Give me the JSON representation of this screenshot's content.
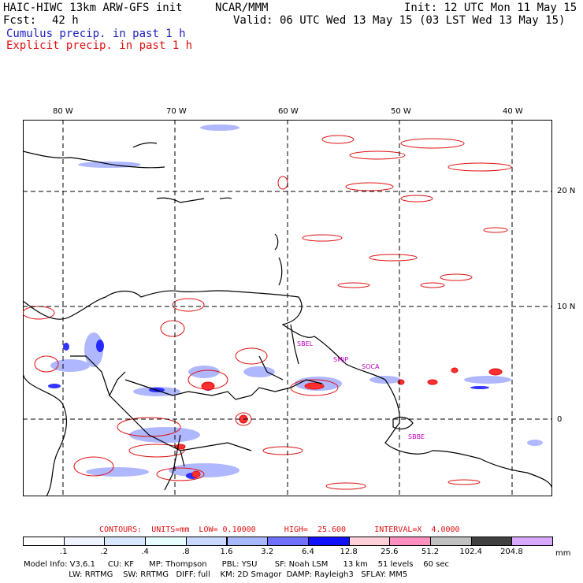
{
  "header": {
    "model_title": "HAIC-HIWC 13km ARW-GFS init",
    "org": "NCAR/MMM",
    "fcst_label": "Fcst:",
    "fcst_value": "42 h",
    "init": "Init: 12 UTC Mon 11 May 15",
    "valid": "Valid: 06 UTC Wed 13 May 15 (03 LST Wed 13 May 15)",
    "cumulus": "Cumulus precip. in past 1 h",
    "explicit": "Explicit precip. in past 1 h"
  },
  "map": {
    "lon_labels": [
      "80 W",
      "70 W",
      "60 W",
      "50 W",
      "40 W"
    ],
    "lat_labels": [
      "20 N",
      "10 N",
      "0"
    ],
    "stations": [
      "SBEL",
      "SMJP",
      "SOCA",
      "SBBE"
    ]
  },
  "colors": {
    "cumulus": "#2020c0",
    "explicit": "#e01010",
    "coast": "#000000"
  },
  "contours": {
    "line": "CONTOURS:  UNITS=mm  LOW= 0.10000      HIGH=  25.600      INTERVAL=X  4.0000"
  },
  "colorbar": {
    "unit": "mm",
    "labels": [
      ".1",
      ".2",
      ".4",
      ".8",
      "1.6",
      "3.2",
      "6.4",
      "12.8",
      "25.6",
      "51.2",
      "102.4",
      "204.8"
    ],
    "colors": [
      "#ffffff",
      "#f0f4ff",
      "#d8e6ff",
      "#e6ffff",
      "#c8d8ff",
      "#a8b8ff",
      "#7070ff",
      "#1010ff",
      "#ffd0d8",
      "#ff90c0",
      "#c0c0c0",
      "#404040",
      "#d8a8ff"
    ]
  },
  "footer": {
    "line1": "Model Info: V3.6.1     CU: KF      MP: Thompson      PBL: YSU       SF: Noah LSM      13 km    51 levels    60 sec",
    "line2": "                  LW: RRTMG    SW: RRTMG   DIFF: full    KM: 2D Smagor  DAMP: Rayleigh3   SFLAY: MM5"
  }
}
